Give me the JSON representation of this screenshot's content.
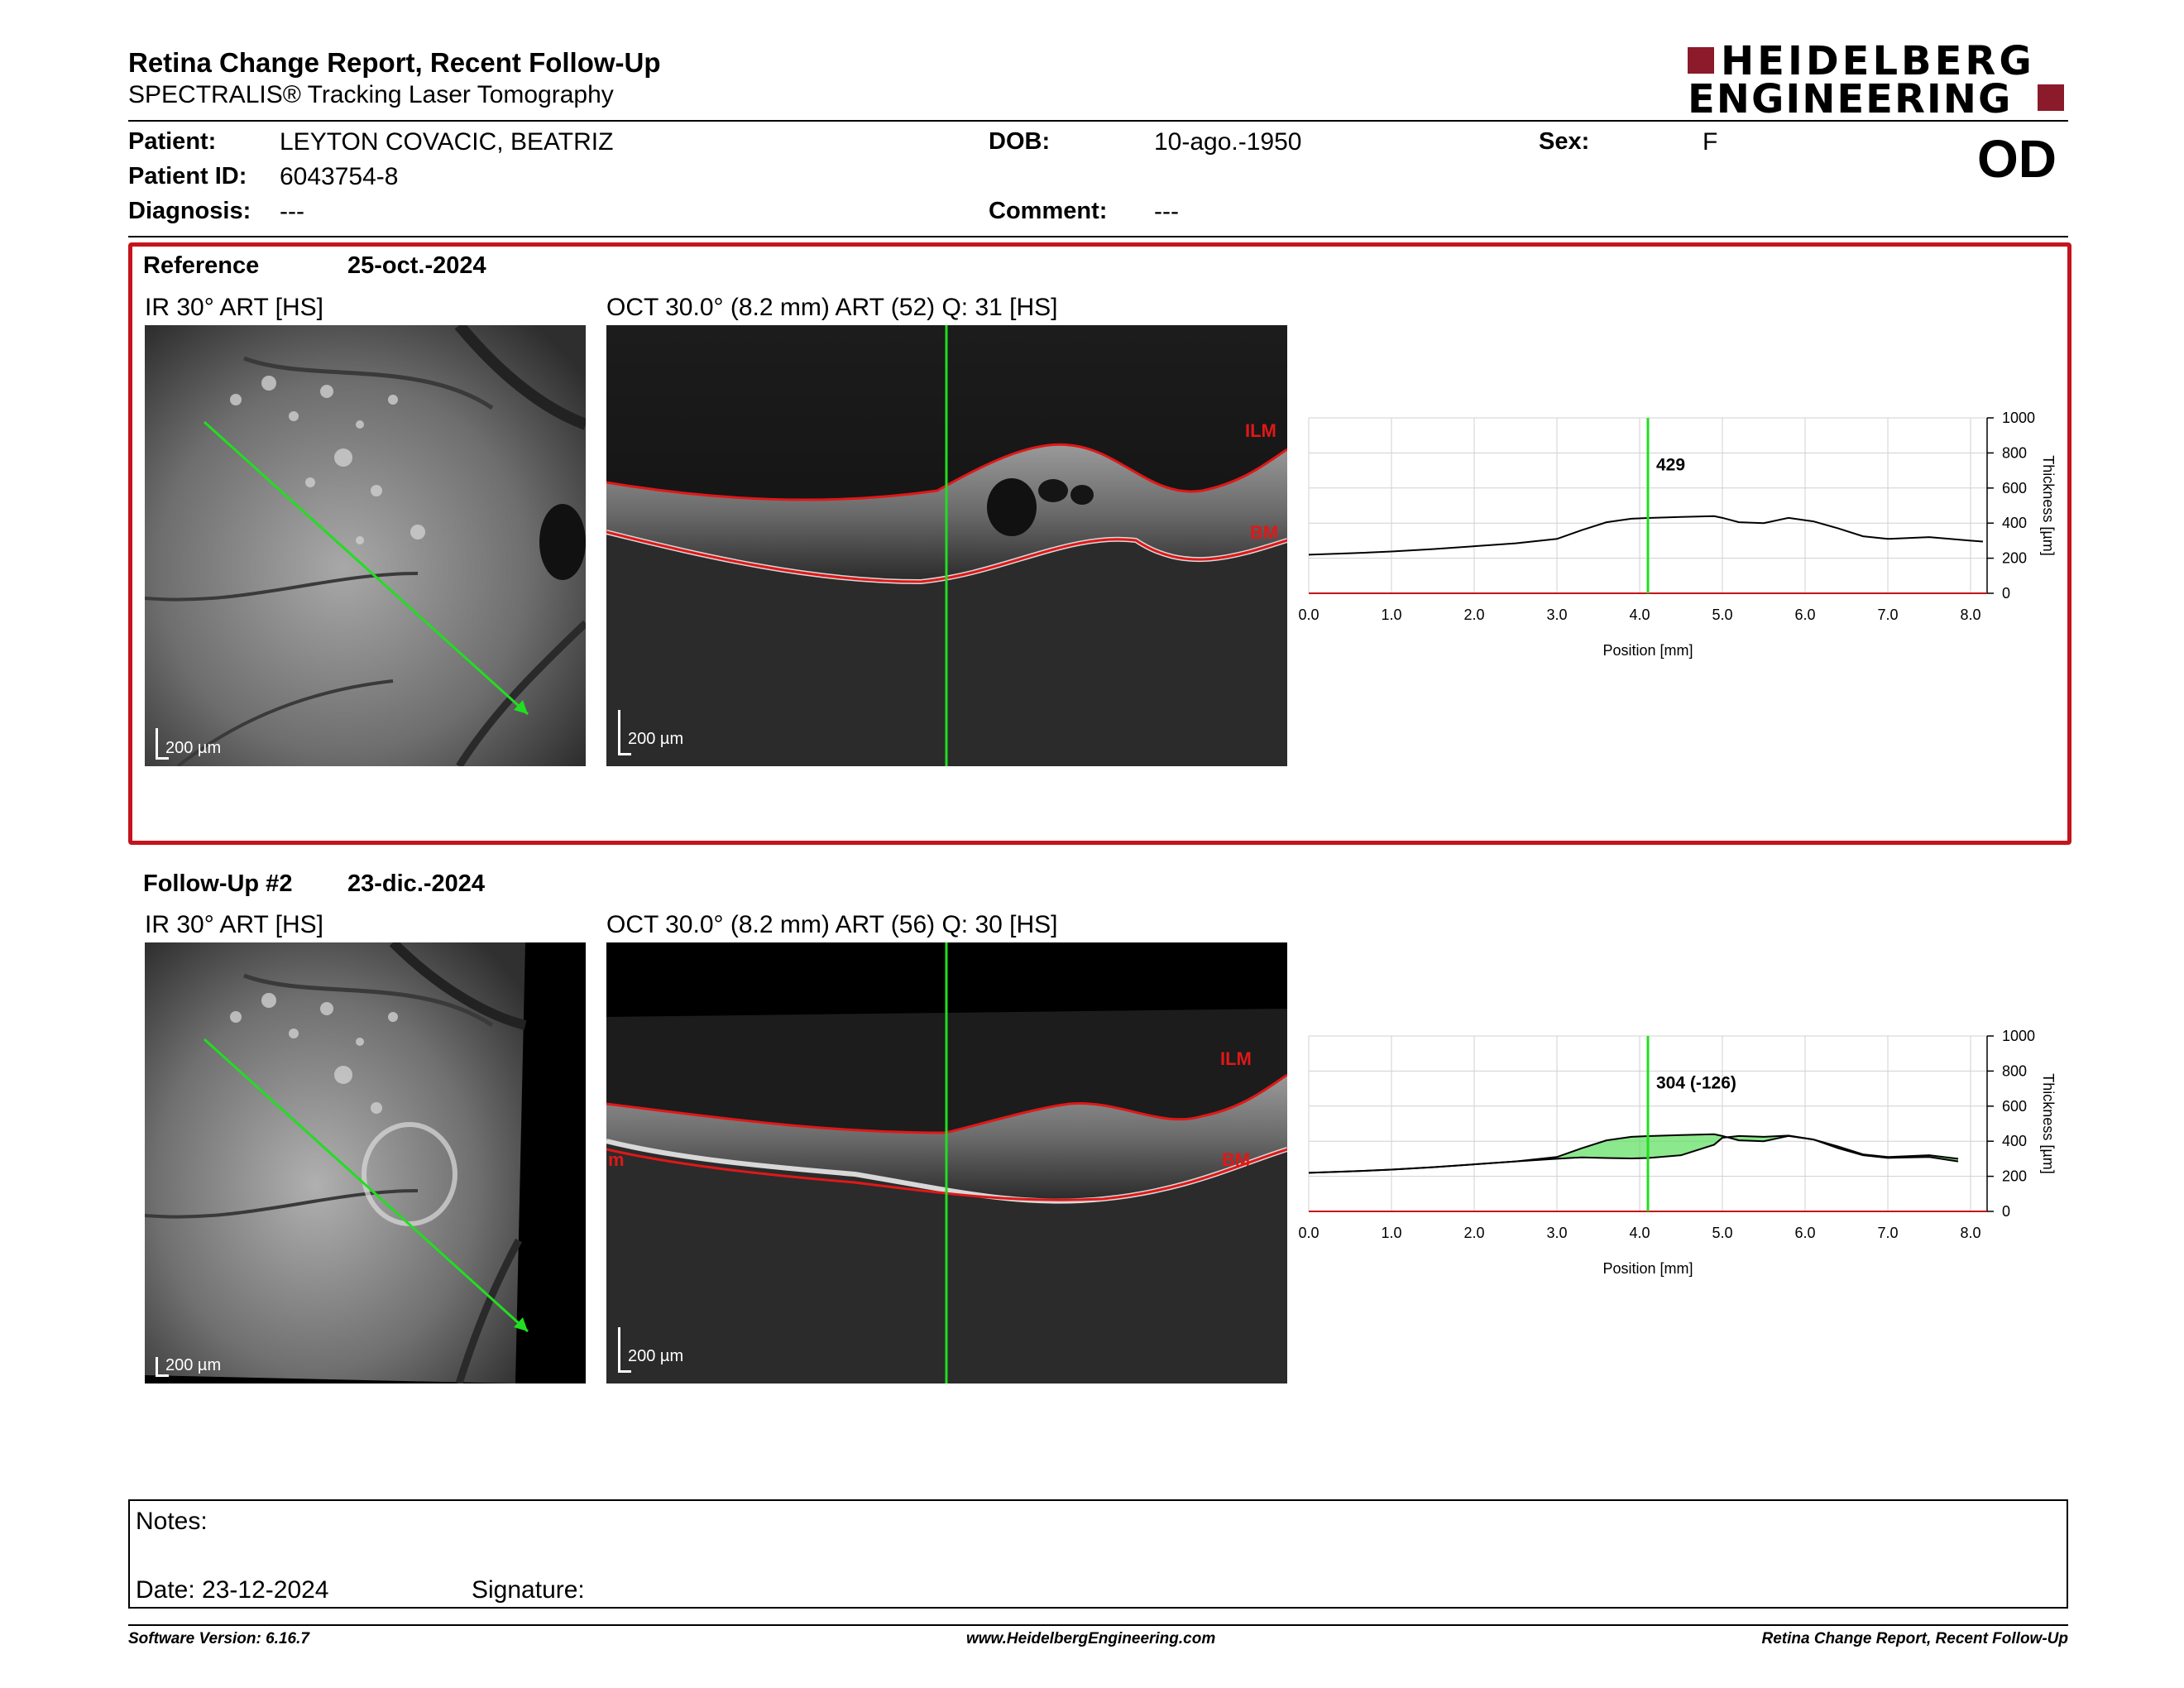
{
  "header": {
    "title": "Retina Change Report, Recent Follow-Up",
    "subtitle": "SPECTRALIS® Tracking Laser Tomography",
    "logo_line1": "HEIDELBERG",
    "logo_line2": "ENGINEERING",
    "eye": "OD"
  },
  "patient": {
    "patient_label": "Patient:",
    "patient_name": "LEYTON COVACIC, BEATRIZ",
    "id_label": "Patient ID:",
    "id_value": "6043754-8",
    "diagnosis_label": "Diagnosis:",
    "diagnosis_value": "---",
    "dob_label": "DOB:",
    "dob_value": "10-ago.-1950",
    "comment_label": "Comment:",
    "comment_value": "---",
    "sex_label": "Sex:",
    "sex_value": "F"
  },
  "reference": {
    "label": "Reference",
    "date": "25-oct.-2024",
    "ir_title": "IR 30° ART [HS]",
    "oct_title": "OCT 30.0° (8.2 mm) ART (52) Q: 31 [HS]",
    "ir_scale": "200 µm",
    "oct_scale": "200 µm",
    "ilm_label": "ILM",
    "bm_label": "BM",
    "value_label": "429"
  },
  "followup": {
    "label": "Follow-Up #2",
    "date": "23-dic.-2024",
    "ir_title": "IR 30° ART [HS]",
    "oct_title": "OCT 30.0° (8.2 mm) ART (56) Q: 30 [HS]",
    "ir_scale": "200 µm",
    "oct_scale": "200 µm",
    "ilm_label": "ILM",
    "bm_label": "BM",
    "m_label": "m",
    "value_label": "304 (-126)"
  },
  "chart_data": [
    {
      "type": "line",
      "xlabel": "Position [mm]",
      "ylabel": "Thickness [µm]",
      "xlim": [
        0,
        8.2
      ],
      "ylim": [
        0,
        1000
      ],
      "x_ticks": [
        "0.0",
        "1.0",
        "2.0",
        "3.0",
        "4.0",
        "5.0",
        "6.0",
        "7.0",
        "8.0"
      ],
      "y_ticks": [
        "0",
        "200",
        "400",
        "600",
        "800",
        "1000"
      ],
      "marker_x": 4.1,
      "marker_label": "429",
      "grid": true,
      "series": [
        {
          "color": "#000000",
          "x": [
            0,
            0.5,
            1.0,
            1.5,
            2.0,
            2.5,
            3.0,
            3.3,
            3.6,
            3.9,
            4.1,
            4.5,
            4.9,
            5.0,
            5.2,
            5.5,
            5.8,
            6.1,
            6.4,
            6.7,
            7.0,
            7.5,
            8.0,
            8.15
          ],
          "y": [
            220,
            228,
            238,
            252,
            268,
            285,
            310,
            360,
            405,
            425,
            429,
            435,
            440,
            430,
            405,
            400,
            430,
            410,
            370,
            325,
            310,
            320,
            300,
            295
          ]
        }
      ]
    },
    {
      "type": "area",
      "xlabel": "Position [mm]",
      "ylabel": "Thickness [µm]",
      "xlim": [
        0,
        8.2
      ],
      "ylim": [
        0,
        1000
      ],
      "x_ticks": [
        "0.0",
        "1.0",
        "2.0",
        "3.0",
        "4.0",
        "5.0",
        "6.0",
        "7.0",
        "8.0"
      ],
      "y_ticks": [
        "0",
        "200",
        "400",
        "600",
        "800",
        "1000"
      ],
      "marker_x": 4.1,
      "marker_label": "304 (-126)",
      "grid": true,
      "fill_color": "#66e066",
      "series": [
        {
          "color": "#000000",
          "x": [
            0,
            0.5,
            1.0,
            1.5,
            2.0,
            2.5,
            3.0,
            3.3,
            3.6,
            3.9,
            4.1,
            4.5,
            4.9,
            5.0,
            5.2,
            5.5,
            5.8,
            6.1,
            6.4,
            6.7,
            7.0,
            7.5,
            7.85
          ],
          "y": [
            220,
            228,
            238,
            252,
            268,
            285,
            300,
            308,
            304,
            302,
            304,
            320,
            380,
            420,
            430,
            425,
            432,
            410,
            360,
            320,
            305,
            310,
            285
          ]
        },
        {
          "color": "#000000",
          "x": [
            0,
            0.5,
            1.0,
            1.5,
            2.0,
            2.5,
            3.0,
            3.3,
            3.6,
            3.9,
            4.1,
            4.5,
            4.9,
            5.0,
            5.2,
            5.5,
            5.8,
            6.1,
            6.4,
            6.7,
            7.0,
            7.5,
            7.85
          ],
          "y": [
            220,
            228,
            238,
            252,
            268,
            285,
            310,
            360,
            405,
            425,
            429,
            435,
            440,
            430,
            405,
            400,
            430,
            410,
            370,
            325,
            310,
            320,
            300
          ]
        }
      ]
    }
  ],
  "footer": {
    "notes_label": "Notes:",
    "date_label": "Date: 23-12-2024",
    "signature_label": "Signature:",
    "software_version": "Software Version: 6.16.7",
    "website": "www.HeidelbergEngineering.com",
    "report_name": "Retina Change Report, Recent Follow-Up"
  }
}
